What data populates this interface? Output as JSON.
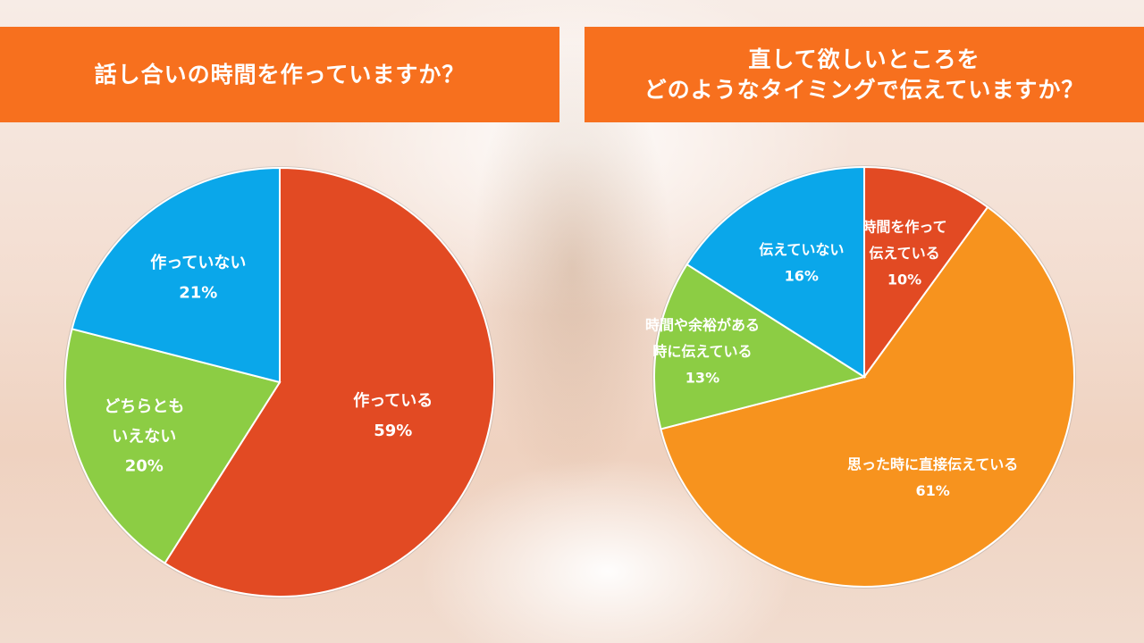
{
  "left_title": "話し合いの時間を作っていますか？",
  "right_title_line1": "直して欲しいところを",
  "right_title_line2": "どのようなタイミングで伝えていますか？",
  "chart_data": [
    {
      "type": "pie",
      "title": "話し合いの時間を作っていますか？",
      "slices": [
        {
          "label": [
            "作っている"
          ],
          "value": 59,
          "value_label": "59%",
          "color": "#e24a23"
        },
        {
          "label": [
            "どちらとも",
            "いえない"
          ],
          "value": 20,
          "value_label": "20%",
          "color": "#8ccd44"
        },
        {
          "label": [
            "作っていない"
          ],
          "value": 21,
          "value_label": "21%",
          "color": "#0aa7ea"
        }
      ]
    },
    {
      "type": "pie",
      "title": "直して欲しいところを どのようなタイミングで伝えていますか？",
      "slices": [
        {
          "label": [
            "時間を作って",
            "伝えている"
          ],
          "value": 10,
          "value_label": "10%",
          "color": "#e24a23"
        },
        {
          "label": [
            "思った時に直接伝えている"
          ],
          "value": 61,
          "value_label": "61%",
          "color": "#f7931e"
        },
        {
          "label": [
            "時間や余裕がある",
            "時に伝えている"
          ],
          "value": 13,
          "value_label": "13%",
          "color": "#8ccd44"
        },
        {
          "label": [
            "伝えていない"
          ],
          "value": 16,
          "value_label": "16%",
          "color": "#0aa7ea"
        }
      ]
    }
  ]
}
